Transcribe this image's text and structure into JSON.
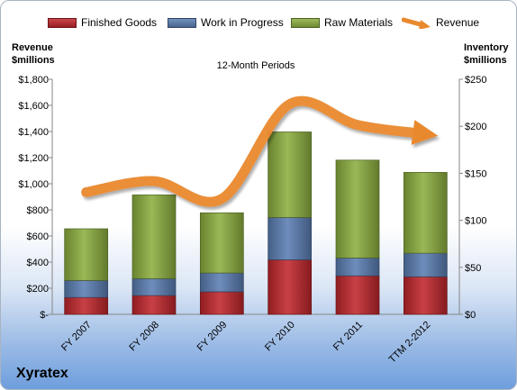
{
  "company": "Xyratex",
  "chart_data": {
    "type": "bar",
    "subtitle": "12-Month Periods",
    "categories": [
      "FY 2007",
      "FY 2008",
      "FY 2009",
      "FY 2010",
      "FY 2011",
      "TTM 2-2012"
    ],
    "y_left": {
      "label_line1": "Revenue",
      "label_line2": "$millions",
      "ylim": [
        0,
        1800
      ],
      "ticks": [
        "$-",
        "$200",
        "$400",
        "$600",
        "$800",
        "$1,000",
        "$1,200",
        "$1,400",
        "$1,600",
        "$1,800"
      ]
    },
    "y_right": {
      "label_line1": "Inventory",
      "label_line2": "$millions",
      "ylim": [
        0,
        250
      ],
      "ticks": [
        "$0",
        "$50",
        "$100",
        "$150",
        "$200",
        "$250"
      ]
    },
    "series": [
      {
        "name": "Finished Goods",
        "axis": "right",
        "stacked": true,
        "color": "#c0262c",
        "values": [
          18,
          20,
          24,
          58,
          41,
          40
        ]
      },
      {
        "name": "Work in Progress",
        "axis": "right",
        "stacked": true,
        "color": "#5a7eb3",
        "values": [
          18,
          18,
          20,
          45,
          19,
          25
        ]
      },
      {
        "name": "Raw Materials",
        "axis": "right",
        "stacked": true,
        "color": "#8cae3f",
        "values": [
          55,
          89,
          64,
          91,
          104,
          86
        ]
      },
      {
        "name": "Revenue",
        "axis": "left",
        "type": "line",
        "color": "#e9892f",
        "values": [
          935,
          1020,
          885,
          1610,
          1450,
          1380
        ]
      }
    ],
    "legend_position": "top",
    "grid": false
  }
}
